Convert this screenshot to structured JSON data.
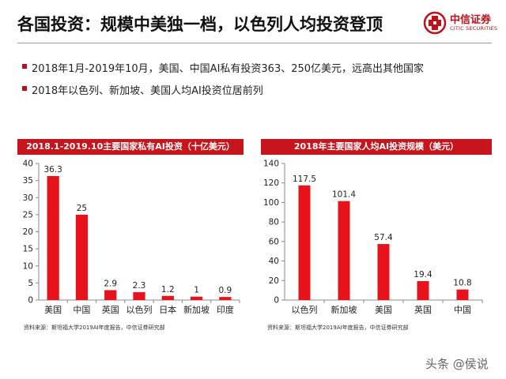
{
  "title": "各国投资：规模中美独一档，以色列人均投资登顶",
  "logo": {
    "cn": "中信证券",
    "en": "CITIC SECURITIES",
    "icon": "citic-logo-icon"
  },
  "bullets": [
    "2018年1月-2019年10月，美国、中国AI私有投资363、250亿美元，远高出其他国家",
    "2018年以色列、新加坡、美国人均AI投资位居前列"
  ],
  "colors": {
    "accent": "#c8141c",
    "bar": "#e8121a"
  },
  "chart_data": [
    {
      "type": "bar",
      "title": "2018.1-2019.10主要国家私有AI投资（十亿美元）",
      "categories": [
        "美国",
        "中国",
        "英国",
        "以色列",
        "日本",
        "新加坡",
        "印度"
      ],
      "values": [
        36.3,
        25,
        2.9,
        2.3,
        1.2,
        1,
        0.9
      ],
      "value_labels": [
        "36.3",
        "25",
        "2.9",
        "2.3",
        "1.2",
        "1",
        "0.9"
      ],
      "ylim": [
        0,
        40
      ],
      "yticks": [
        0,
        5,
        10,
        15,
        20,
        25,
        30,
        35,
        40
      ],
      "xlabel": "",
      "ylabel": "",
      "grid": false,
      "source": "资料来源：斯坦福大学2019AI年度报告，中信证券研究部"
    },
    {
      "type": "bar",
      "title": "2018年主要国家人均AI投资规模（美元）",
      "categories": [
        "以色列",
        "新加坡",
        "美国",
        "英国",
        "中国"
      ],
      "values": [
        117.5,
        101.4,
        57.4,
        19.4,
        10.8
      ],
      "value_labels": [
        "117.5",
        "101.4",
        "57.4",
        "19.4",
        "10.8"
      ],
      "ylim": [
        0,
        140
      ],
      "yticks": [
        0,
        20,
        40,
        60,
        80,
        100,
        120,
        140
      ],
      "xlabel": "",
      "ylabel": "",
      "grid": false,
      "source": "资料来源：斯坦福大学2019AI年度报告，中信证券研究部"
    }
  ],
  "watermark": "头条 @侯说"
}
